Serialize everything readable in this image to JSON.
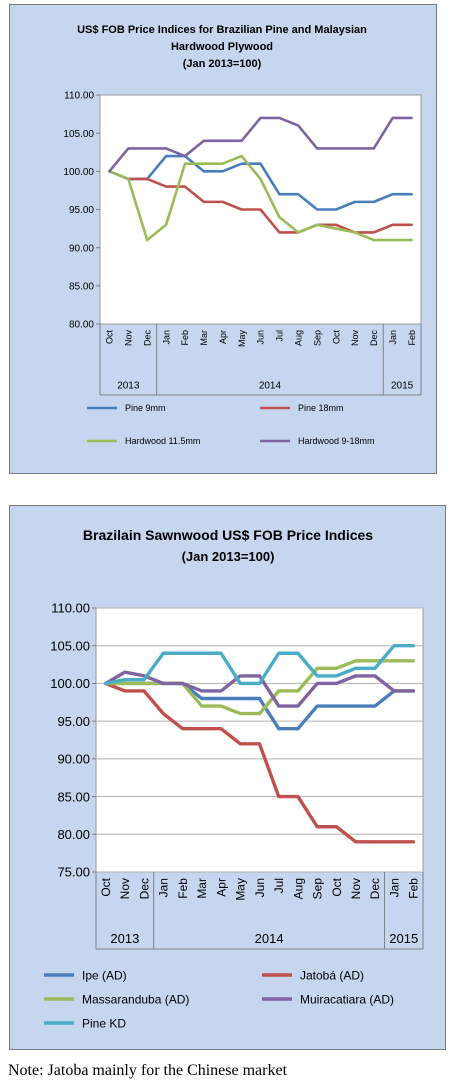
{
  "note": "Note: Jatoba mainly for the Chinese market",
  "chart_data": [
    {
      "type": "line",
      "title": "US$ FOB Price Indices for Brazilian Pine and Malaysian",
      "title_line2": "Hardwood Plywood",
      "subtitle": "(Jan 2013=100)",
      "categories": [
        "Oct",
        "Nov",
        "Dec",
        "Jan",
        "Feb",
        "Mar",
        "Apr",
        "May",
        "Jun",
        "Jul",
        "Aug",
        "Sep",
        "Oct",
        "Nov",
        "Dec",
        "Jan",
        "Feb"
      ],
      "year_groups": [
        {
          "label": "2013",
          "span": 3
        },
        {
          "label": "2014",
          "span": 12
        },
        {
          "label": "2015",
          "span": 2
        }
      ],
      "ylim": [
        80,
        110
      ],
      "yticks": [
        "80.00",
        "85.00",
        "90.00",
        "95.00",
        "100.00",
        "105.00",
        "110.00"
      ],
      "grid": false,
      "legend_position": "bottom",
      "series": [
        {
          "name": "Pine 9mm",
          "color": "#4a7ebb",
          "values": [
            100,
            99,
            99,
            102,
            102,
            100,
            100,
            101,
            101,
            97,
            97,
            95,
            95,
            96,
            96,
            97,
            97
          ]
        },
        {
          "name": "Pine 18mm",
          "color": "#c0504d",
          "values": [
            100,
            99,
            99,
            98,
            98,
            96,
            96,
            95,
            95,
            92,
            92,
            93,
            93,
            92,
            92,
            93,
            93
          ]
        },
        {
          "name": "Hardwood 11.5mm",
          "color": "#9bbb59",
          "values": [
            100,
            99,
            91,
            93,
            101,
            101,
            101,
            102,
            99,
            94,
            92,
            93,
            92.5,
            92,
            91,
            91,
            91
          ]
        },
        {
          "name": "Hardwood 9-18mm",
          "color": "#8064a2",
          "values": [
            100,
            103,
            103,
            103,
            102,
            104,
            104,
            104,
            107,
            107,
            106,
            103,
            103,
            103,
            103,
            107,
            107
          ]
        }
      ]
    },
    {
      "type": "line",
      "title": "Brazilain Sawnwood US$ FOB Price Indices",
      "subtitle": "(Jan 2013=100)",
      "categories": [
        "Oct",
        "Nov",
        "Dec",
        "Jan",
        "Feb",
        "Mar",
        "Apr",
        "May",
        "Jun",
        "Jul",
        "Aug",
        "Sep",
        "Oct",
        "Nov",
        "Dec",
        "Jan",
        "Feb"
      ],
      "year_groups": [
        {
          "label": "2013",
          "span": 3
        },
        {
          "label": "2014",
          "span": 12
        },
        {
          "label": "2015",
          "span": 2
        }
      ],
      "ylim": [
        75,
        110
      ],
      "yticks": [
        "75.00",
        "80.00",
        "85.00",
        "90.00",
        "95.00",
        "100.00",
        "105.00",
        "110.00"
      ],
      "grid": true,
      "legend_position": "bottom",
      "series": [
        {
          "name": "Ipe (AD)",
          "color": "#4a7ebb",
          "values": [
            100,
            100,
            100,
            100,
            100,
            98,
            98,
            98,
            98,
            94,
            94,
            97,
            97,
            97,
            97,
            99,
            99
          ]
        },
        {
          "name": "Jatobá (AD)",
          "color": "#c0504d",
          "values": [
            100,
            99,
            99,
            96,
            94,
            94,
            94,
            92,
            92,
            85,
            85,
            81,
            81,
            79,
            79,
            79,
            79
          ]
        },
        {
          "name": "Massaranduba (AD)",
          "color": "#9bbb59",
          "values": [
            100,
            100,
            100,
            100,
            100,
            97,
            97,
            96,
            96,
            99,
            99,
            102,
            102,
            103,
            103,
            103,
            103
          ]
        },
        {
          "name": "Muiracatiara (AD)",
          "color": "#8064a2",
          "values": [
            100,
            101.5,
            101,
            100,
            100,
            99,
            99,
            101,
            101,
            97,
            97,
            100,
            100,
            101,
            101,
            99,
            99
          ]
        },
        {
          "name": "Pine KD",
          "color": "#4bacc6",
          "values": [
            100,
            100.5,
            100.5,
            104,
            104,
            104,
            104,
            100,
            100,
            104,
            104,
            101,
            101,
            102,
            102,
            105,
            105
          ]
        }
      ]
    }
  ]
}
